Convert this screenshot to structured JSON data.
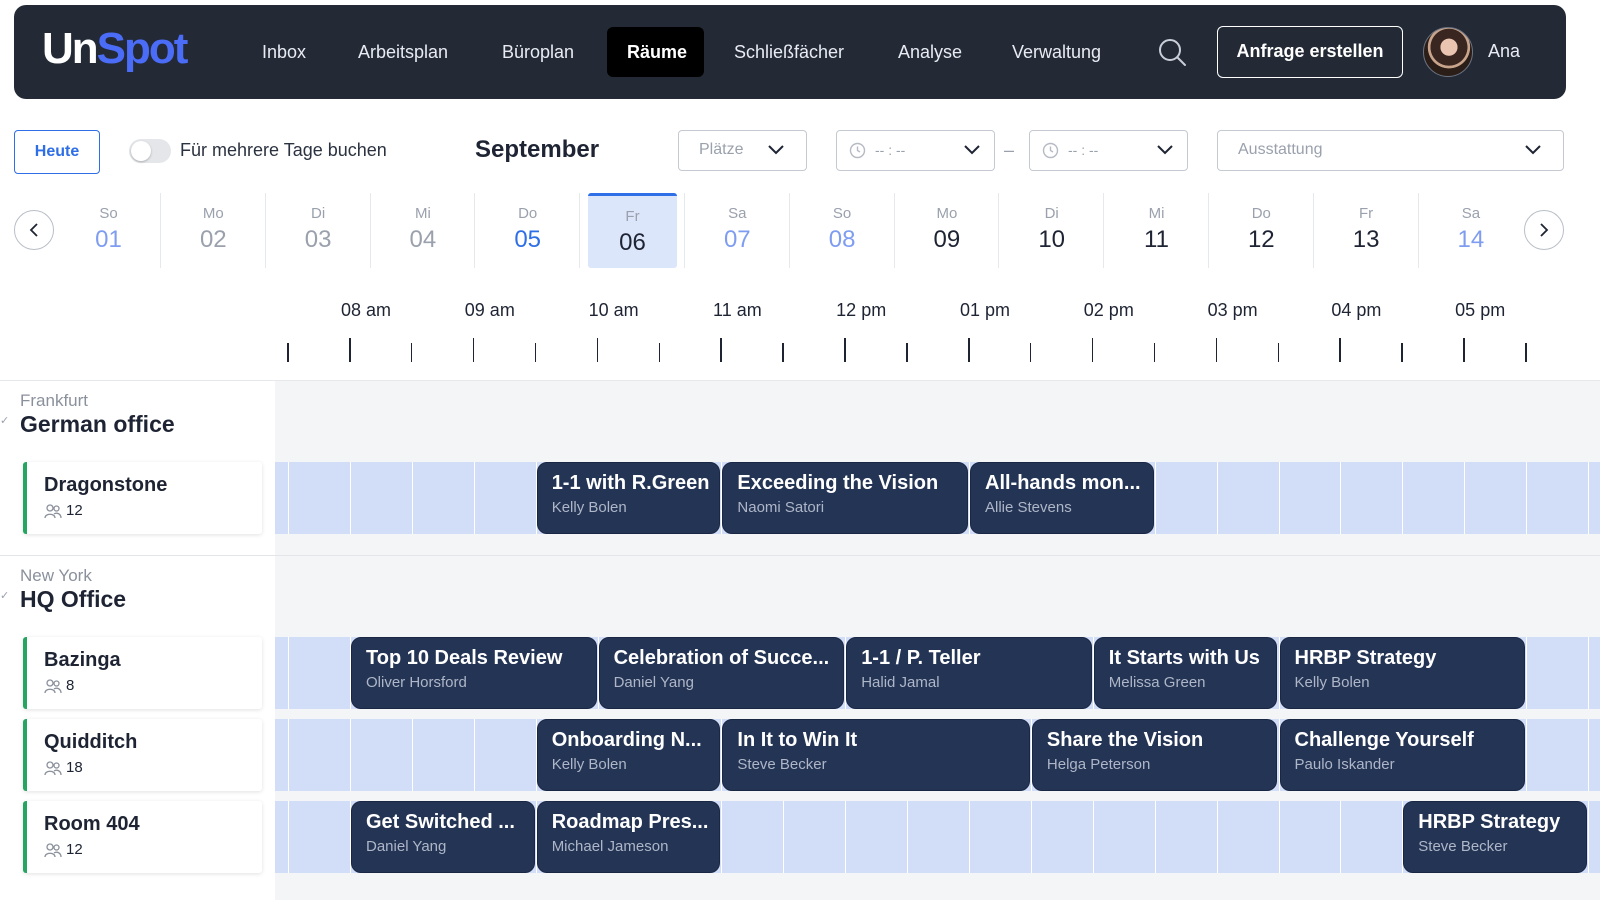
{
  "app": {
    "logo_part1": "Un",
    "logo_part2": "Spot",
    "nav": [
      "Inbox",
      "Arbeitsplan",
      "Büroplan",
      "Räume",
      "Schließfächer",
      "Analyse",
      "Verwaltung"
    ],
    "active_nav": "Räume",
    "cta_label": "Anfrage erstellen",
    "user_name": "Ana"
  },
  "toolbar": {
    "today_label": "Heute",
    "multi_day_label": "Für mehrere Tage buchen",
    "multi_day_enabled": false,
    "month": "September",
    "places_placeholder": "Plätze",
    "time_from_placeholder": "-- : --",
    "time_sep": "–",
    "time_to_placeholder": "-- : --",
    "equipment_placeholder": "Ausstattung"
  },
  "dates": [
    {
      "dow": "So",
      "day": "01",
      "state": "lightblue"
    },
    {
      "dow": "Mo",
      "day": "02",
      "state": "past"
    },
    {
      "dow": "Di",
      "day": "03",
      "state": "past"
    },
    {
      "dow": "Mi",
      "day": "04",
      "state": "past"
    },
    {
      "dow": "Do",
      "day": "05",
      "state": "blue"
    },
    {
      "dow": "Fr",
      "day": "06",
      "state": "selected"
    },
    {
      "dow": "Sa",
      "day": "07",
      "state": "lightblue"
    },
    {
      "dow": "So",
      "day": "08",
      "state": "lightblue"
    },
    {
      "dow": "Mo",
      "day": "09",
      "state": "normal"
    },
    {
      "dow": "Di",
      "day": "10",
      "state": "normal"
    },
    {
      "dow": "Mi",
      "day": "11",
      "state": "normal"
    },
    {
      "dow": "Do",
      "day": "12",
      "state": "normal"
    },
    {
      "dow": "Fr",
      "day": "13",
      "state": "normal"
    },
    {
      "dow": "Sa",
      "day": "14",
      "state": "lightblue"
    }
  ],
  "hours": [
    "08 am",
    "09 am",
    "10 am",
    "11 am",
    "12 pm",
    "01 pm",
    "02 pm",
    "03 pm",
    "04 pm",
    "05 pm"
  ],
  "groups": [
    {
      "city": "Frankfurt",
      "office": "German office",
      "rooms": [
        {
          "name": "Dragonstone",
          "capacity": "12",
          "events": [
            {
              "title": "1-1 with R.Green",
              "owner": "Kelly Bolen",
              "start": 9.5,
              "end": 11.0
            },
            {
              "title": "Exceeding the Vision",
              "owner": "Naomi Satori",
              "start": 11.0,
              "end": 13.0
            },
            {
              "title": "All-hands mon...",
              "owner": "Allie Stevens",
              "start": 13.0,
              "end": 14.5
            }
          ]
        }
      ]
    },
    {
      "city": "New York",
      "office": "HQ Office",
      "rooms": [
        {
          "name": "Bazinga",
          "capacity": "8",
          "events": [
            {
              "title": "Top 10 Deals Review",
              "owner": "Oliver Horsford",
              "start": 8.0,
              "end": 10.0
            },
            {
              "title": "Celebration of Succe...",
              "owner": "Daniel Yang",
              "start": 10.0,
              "end": 12.0
            },
            {
              "title": "1-1 / P. Teller",
              "owner": "Halid Jamal",
              "start": 12.0,
              "end": 14.0
            },
            {
              "title": "It Starts with Us",
              "owner": "Melissa Green",
              "start": 14.0,
              "end": 15.5
            },
            {
              "title": "HRBP Strategy",
              "owner": "Kelly Bolen",
              "start": 15.5,
              "end": 17.5
            }
          ]
        },
        {
          "name": "Quidditch",
          "capacity": "18",
          "events": [
            {
              "title": "Onboarding N...",
              "owner": "Kelly Bolen",
              "start": 9.5,
              "end": 11.0
            },
            {
              "title": "In It to Win It",
              "owner": "Steve Becker",
              "start": 11.0,
              "end": 13.5
            },
            {
              "title": "Share the Vision",
              "owner": "Helga Peterson",
              "start": 13.5,
              "end": 15.5
            },
            {
              "title": "Challenge Yourself",
              "owner": "Paulo Iskander",
              "start": 15.5,
              "end": 17.5
            }
          ]
        },
        {
          "name": "Room 404",
          "capacity": "12",
          "events": [
            {
              "title": "Get Switched ...",
              "owner": "Daniel Yang",
              "start": 8.0,
              "end": 9.5
            },
            {
              "title": "Roadmap Pres...",
              "owner": "Michael Jameson",
              "start": 9.5,
              "end": 11.0
            },
            {
              "title": "HRBP Strategy",
              "owner": "Steve Becker",
              "start": 16.5,
              "end": 18.0
            }
          ]
        }
      ]
    }
  ],
  "colors": {
    "header_bg": "#232a36",
    "accent": "#2e6ee6",
    "event_bg": "#243455",
    "track_bg": "#d2ddf8",
    "room_border": "#25a55f"
  }
}
